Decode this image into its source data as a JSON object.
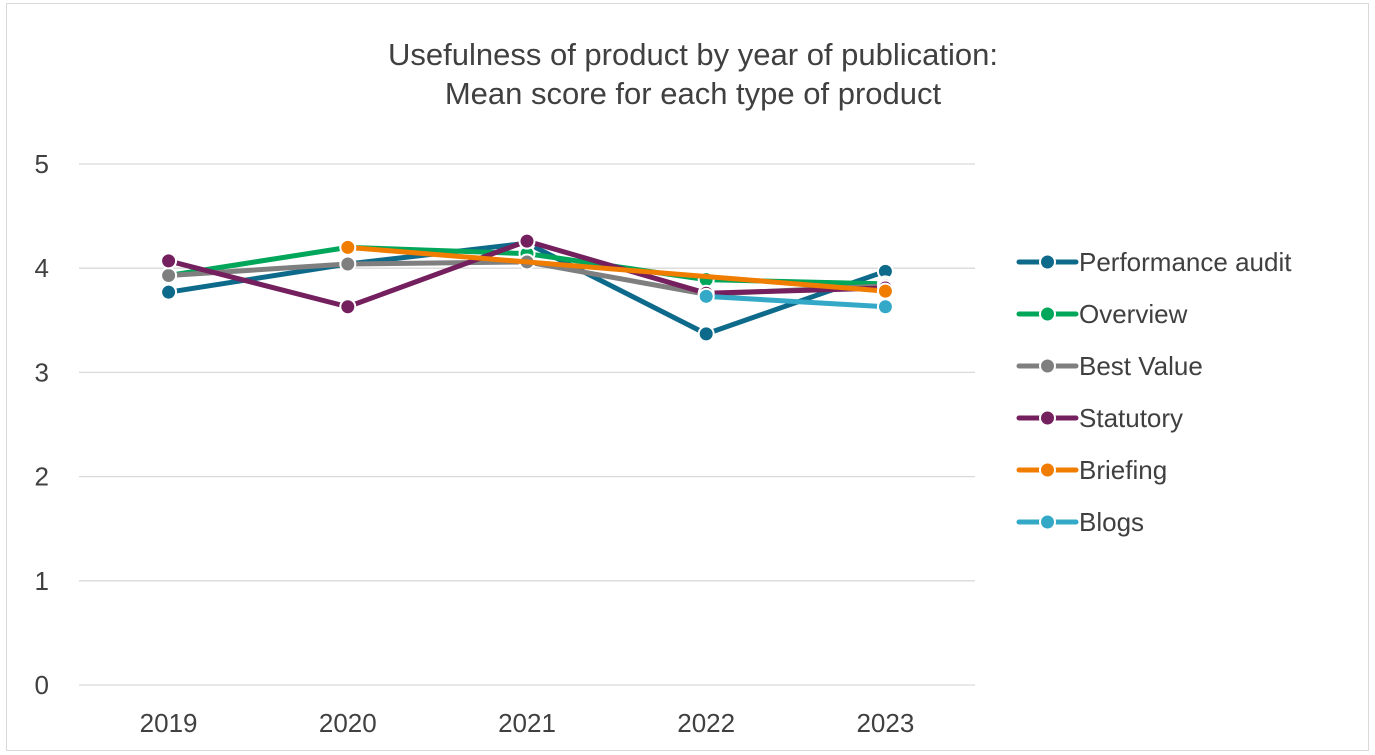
{
  "chart_data": {
    "type": "line",
    "title": [
      "Usefulness of product by year of publication:",
      "Mean score for each type of product"
    ],
    "xlabel": "",
    "ylabel": "",
    "categories": [
      "2019",
      "2020",
      "2021",
      "2022",
      "2023"
    ],
    "ylim": [
      0,
      5
    ],
    "yticks": [
      "0",
      "1",
      "2",
      "3",
      "4",
      "5"
    ],
    "grid": true,
    "legend_position": "right",
    "series": [
      {
        "name": "Performance audit",
        "color": "#0e6a8a",
        "values": [
          3.77,
          4.04,
          4.24,
          3.37,
          3.97
        ]
      },
      {
        "name": "Overview",
        "color": "#00a65a",
        "values": [
          3.93,
          4.2,
          4.14,
          3.89,
          3.85
        ]
      },
      {
        "name": "Best Value",
        "color": "#7f7f7f",
        "values": [
          3.93,
          4.04,
          4.06,
          3.75,
          3.83
        ]
      },
      {
        "name": "Statutory",
        "color": "#75205e",
        "values": [
          4.07,
          3.63,
          4.26,
          3.76,
          3.81
        ]
      },
      {
        "name": "Briefing",
        "color": "#f07d00",
        "values": [
          null,
          4.2,
          null,
          null,
          3.78
        ]
      },
      {
        "name": "Blogs",
        "color": "#33a8c7",
        "values": [
          null,
          null,
          null,
          3.73,
          3.63
        ]
      }
    ]
  }
}
